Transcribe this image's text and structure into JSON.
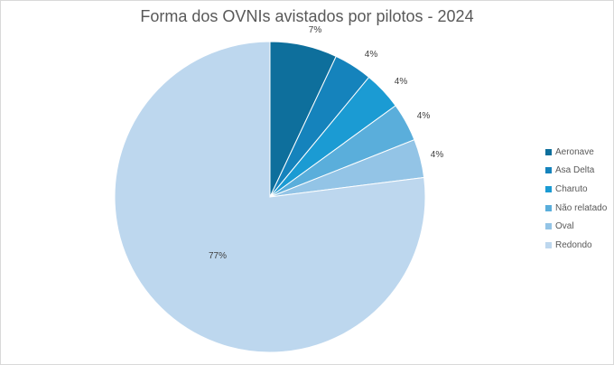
{
  "chart_data": {
    "type": "pie",
    "title": "Forma dos OVNIs avistados por pilotos - 2024",
    "categories": [
      "Aeronave",
      "Asa Delta",
      "Charuto",
      "Não relatado",
      "Oval",
      "Redondo"
    ],
    "values": [
      7,
      4,
      4,
      4,
      4,
      77
    ],
    "data_labels": [
      "7%",
      "4%",
      "4%",
      "4%",
      "4%",
      "77%"
    ],
    "colors": [
      "#0e6f9c",
      "#1583bc",
      "#1b9bd3",
      "#5aaedb",
      "#93c4e6",
      "#bdd7ee"
    ],
    "legend_position": "right"
  }
}
